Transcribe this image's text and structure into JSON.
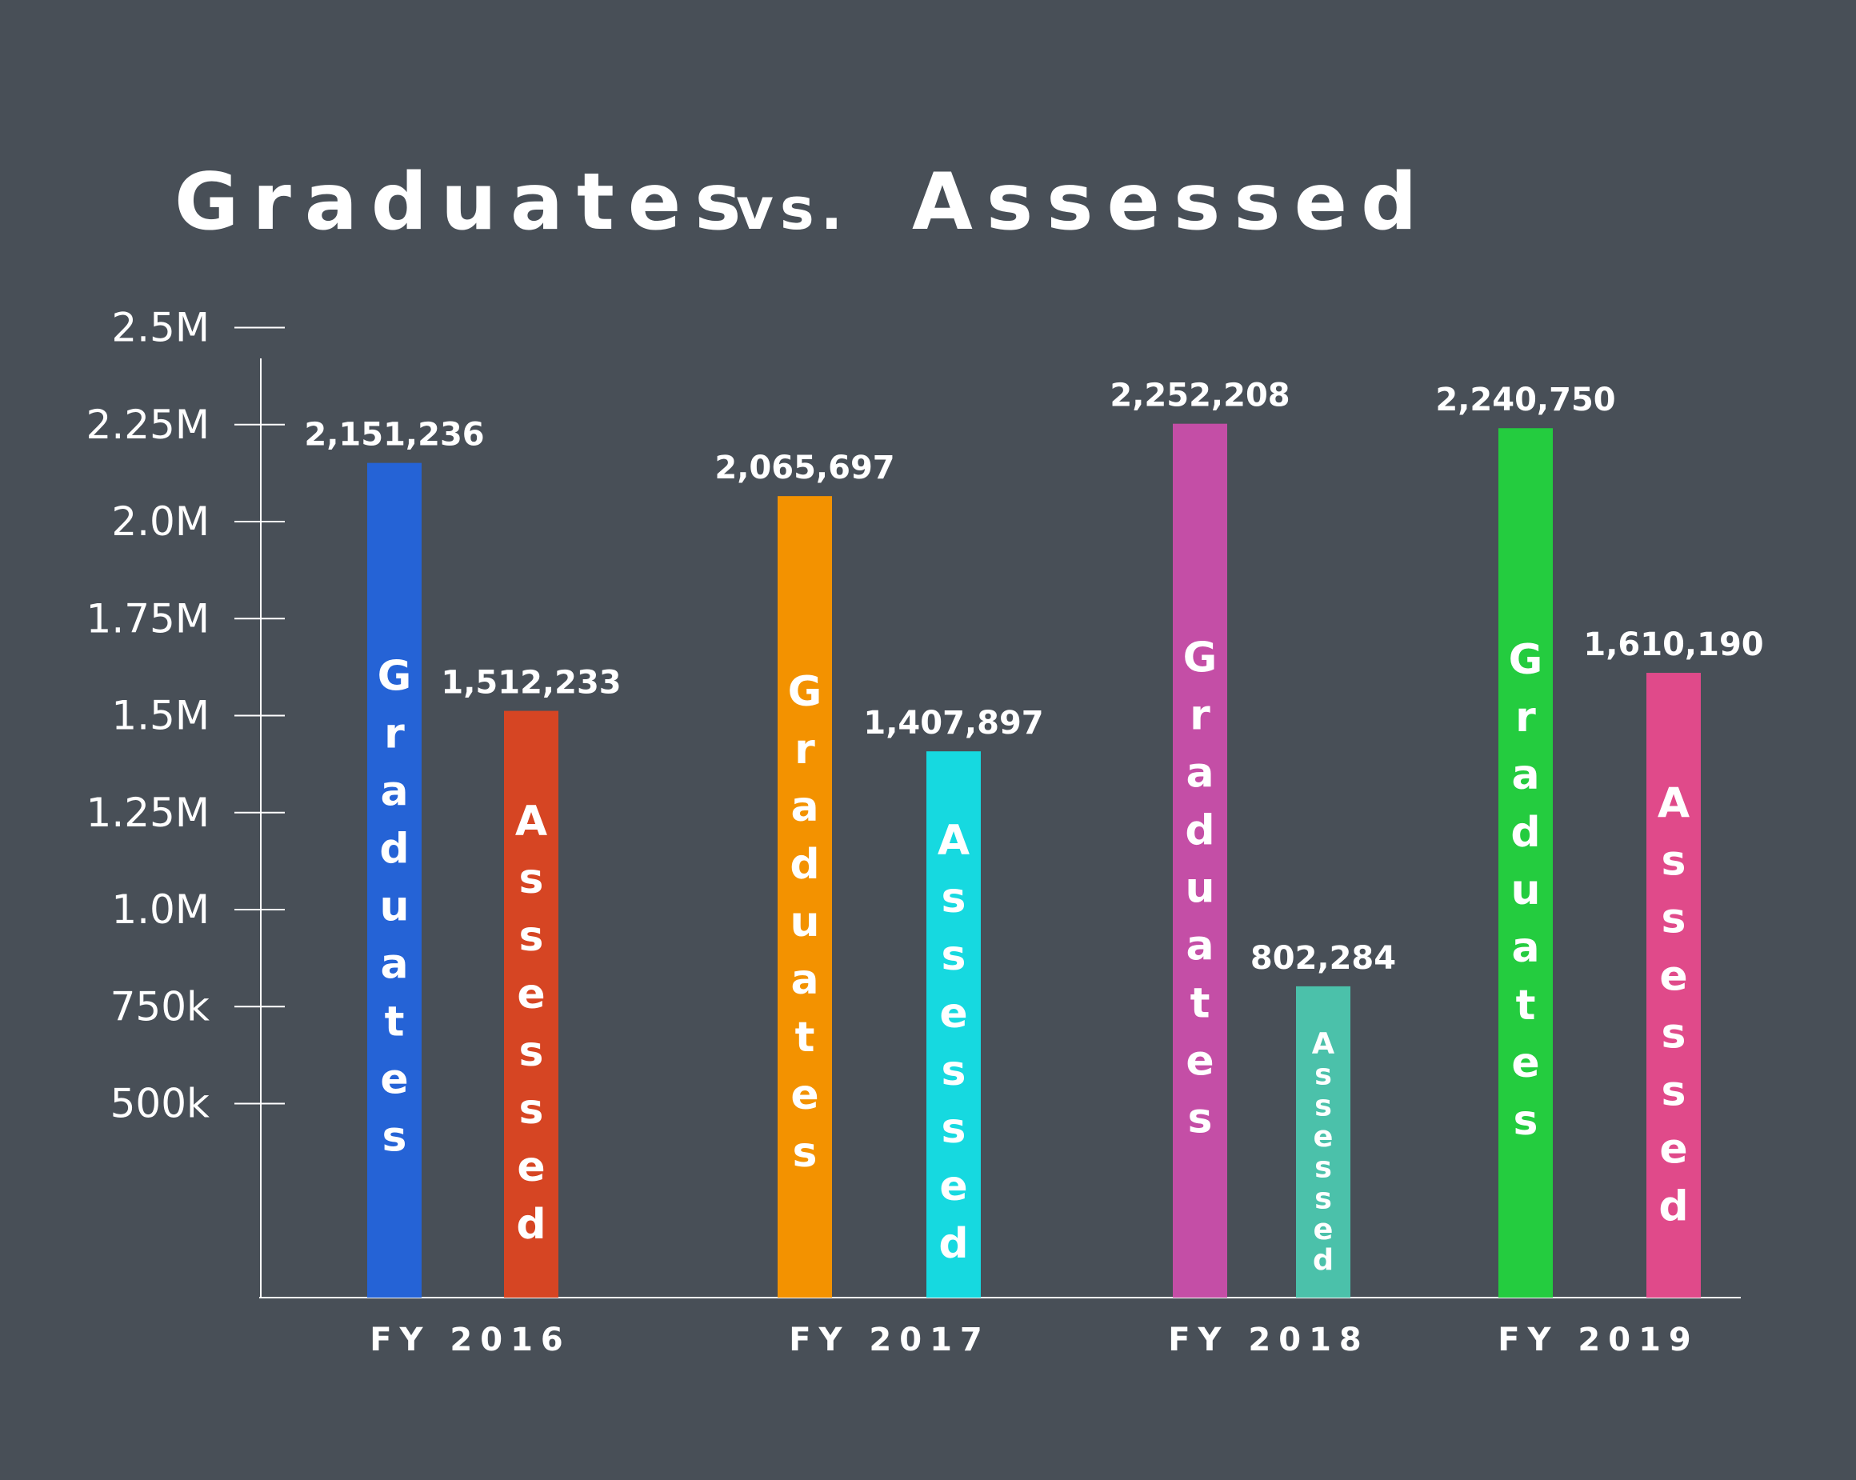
{
  "chart_data": {
    "type": "bar",
    "title": {
      "part1": "Graduates",
      "part2": "vs.",
      "part3": "Assessed"
    },
    "categories": [
      "FY 2016",
      "FY 2017",
      "FY 2018",
      "FY 2019"
    ],
    "series": [
      {
        "name": "Graduates",
        "values": [
          2151236,
          2065697,
          2252208,
          2240750
        ],
        "labels": [
          "2,151,236",
          "2,065,697",
          "2,252,208",
          "2,240,750"
        ],
        "colors": [
          "#2563d6",
          "#f39200",
          "#c44ea6",
          "#24cc3f"
        ]
      },
      {
        "name": "Assessed",
        "values": [
          1512233,
          1407897,
          802284,
          1610190
        ],
        "labels": [
          "1,512,233",
          "1,407,897",
          "802,284",
          "1,610,190"
        ],
        "colors": [
          "#d64523",
          "#16d9e0",
          "#4bc1aa",
          "#e04a8a"
        ]
      }
    ],
    "y_ticks": [
      {
        "value": 500000,
        "label": "500k"
      },
      {
        "value": 750000,
        "label": "750k"
      },
      {
        "value": 1000000,
        "label": "1.0M"
      },
      {
        "value": 1250000,
        "label": "1.25M"
      },
      {
        "value": 1500000,
        "label": "1.5M"
      },
      {
        "value": 1750000,
        "label": "1.75M"
      },
      {
        "value": 2000000,
        "label": "2.0M"
      },
      {
        "value": 2250000,
        "label": "2.25M"
      },
      {
        "value": 2500000,
        "label": "2.5M"
      }
    ],
    "ylim": [
      0,
      2500000
    ],
    "xlabel": "",
    "ylabel": "",
    "grid": false,
    "legend": "none",
    "background_color": "#484f57",
    "text_color": "#ffffff"
  }
}
